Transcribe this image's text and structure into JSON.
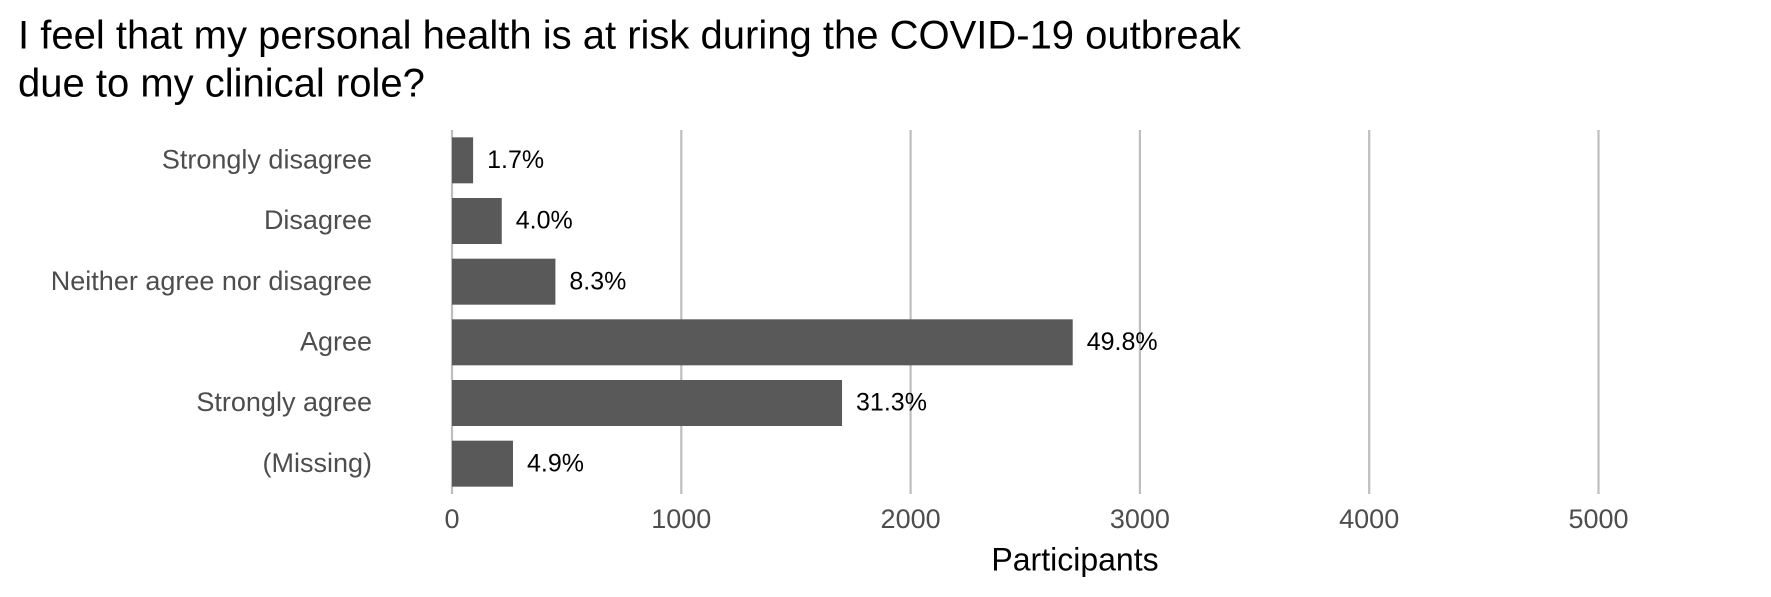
{
  "chart_data": {
    "type": "bar",
    "orientation": "horizontal",
    "title": "I feel that my personal health is at risk during the COVID-19 outbreak\ndue to my clinical role?",
    "x_label": "Participants",
    "categories": [
      "Strongly disagree",
      "Disagree",
      "Neither agree nor disagree",
      "Agree",
      "Strongly agree",
      "(Missing)"
    ],
    "values": [
      92,
      217,
      451,
      2707,
      1701,
      266
    ],
    "value_labels": [
      "1.7%",
      "4.0%",
      "8.3%",
      "49.8%",
      "31.3%",
      "4.9%"
    ],
    "color": "#595959",
    "xlim": [
      0,
      5700
    ],
    "xticks": [
      0,
      1000,
      2000,
      3000,
      4000,
      5000
    ],
    "grid": true
  }
}
